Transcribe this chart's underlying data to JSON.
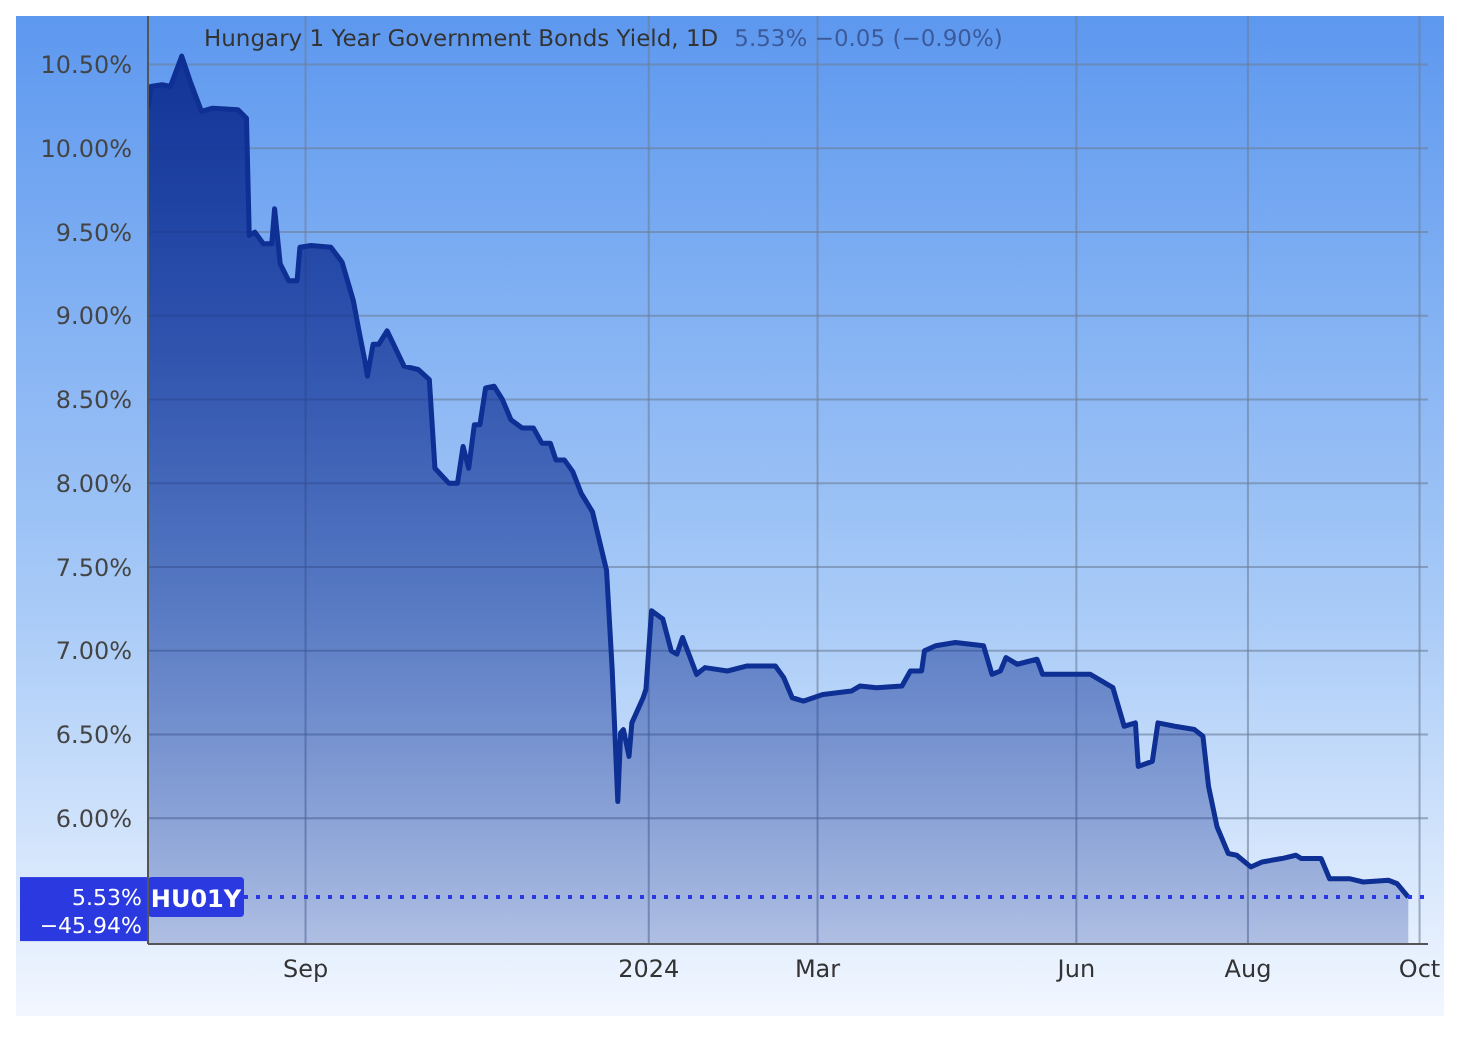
{
  "chart_data": {
    "type": "area",
    "title": "Hungary 1 Year Government Bonds Yield, 1D",
    "subtitle": "5.53%  −0.05 (−0.90%)",
    "x": [
      "2023-07-07",
      "2023-07-08",
      "2023-07-12",
      "2023-07-15",
      "2023-07-19",
      "2023-07-22",
      "2023-07-26",
      "2023-07-30",
      "2023-08-08",
      "2023-08-11",
      "2023-08-12",
      "2023-08-14",
      "2023-08-17",
      "2023-08-20",
      "2023-08-21",
      "2023-08-23",
      "2023-08-26",
      "2023-08-29",
      "2023-08-30",
      "2023-09-03",
      "2023-09-10",
      "2023-09-14",
      "2023-09-18",
      "2023-09-20",
      "2023-09-22",
      "2023-09-23",
      "2023-09-25",
      "2023-09-27",
      "2023-09-30",
      "2023-10-04",
      "2023-10-06",
      "2023-10-11",
      "2023-10-15",
      "2023-10-17",
      "2023-10-22",
      "2023-10-25",
      "2023-10-27",
      "2023-10-29",
      "2023-10-31",
      "2023-11-02",
      "2023-11-04",
      "2023-11-07",
      "2023-11-10",
      "2023-11-13",
      "2023-11-17",
      "2023-11-21",
      "2023-11-24",
      "2023-11-27",
      "2023-11-29",
      "2023-12-02",
      "2023-12-05",
      "2023-12-08",
      "2023-12-12",
      "2023-12-17",
      "2023-12-19",
      "2023-12-21",
      "2023-12-22",
      "2023-12-23",
      "2023-12-25",
      "2023-12-26",
      "2023-12-30",
      "2023-12-31",
      "2024-01-02",
      "2024-01-06",
      "2024-01-09",
      "2024-01-11",
      "2024-01-13",
      "2024-01-18",
      "2024-01-21",
      "2024-01-29",
      "2024-02-05",
      "2024-02-15",
      "2024-02-18",
      "2024-02-21",
      "2024-02-25",
      "2024-03-03",
      "2024-03-13",
      "2024-03-16",
      "2024-03-22",
      "2024-03-31",
      "2024-04-03",
      "2024-04-07",
      "2024-04-08",
      "2024-04-12",
      "2024-04-19",
      "2024-04-29",
      "2024-05-02",
      "2024-05-05",
      "2024-05-07",
      "2024-05-11",
      "2024-05-18",
      "2024-05-20",
      "2024-06-06",
      "2024-06-14",
      "2024-06-18",
      "2024-06-22",
      "2024-06-23",
      "2024-06-28",
      "2024-06-30",
      "2024-07-06",
      "2024-07-13",
      "2024-07-16",
      "2024-07-18",
      "2024-07-21",
      "2024-07-25",
      "2024-07-28",
      "2024-08-02",
      "2024-08-06",
      "2024-08-13",
      "2024-08-18",
      "2024-08-20",
      "2024-08-27",
      "2024-08-30",
      "2024-09-06",
      "2024-09-11",
      "2024-09-20",
      "2024-09-23",
      "2024-09-27"
    ],
    "series": [
      {
        "color": "#0e2f93",
        "values": [
          10.24,
          10.37,
          10.38,
          10.37,
          10.55,
          10.4,
          10.22,
          10.24,
          10.23,
          10.18,
          9.48,
          9.5,
          9.43,
          9.43,
          9.64,
          9.31,
          9.21,
          9.21,
          9.41,
          9.42,
          9.41,
          9.32,
          9.09,
          8.91,
          8.74,
          8.64,
          8.83,
          8.83,
          8.91,
          8.77,
          8.7,
          8.68,
          8.62,
          8.09,
          8.0,
          8.0,
          8.22,
          8.09,
          8.35,
          8.35,
          8.57,
          8.58,
          8.5,
          8.38,
          8.33,
          8.33,
          8.24,
          8.24,
          8.14,
          8.14,
          8.07,
          7.94,
          7.83,
          7.48,
          6.89,
          6.1,
          6.51,
          6.53,
          6.37,
          6.57,
          6.72,
          6.77,
          7.24,
          7.19,
          7.0,
          6.98,
          7.08,
          6.86,
          6.9,
          6.88,
          6.91,
          6.91,
          6.84,
          6.72,
          6.7,
          6.74,
          6.76,
          6.79,
          6.78,
          6.79,
          6.88,
          6.88,
          7.0,
          7.03,
          7.05,
          7.03,
          6.86,
          6.88,
          6.96,
          6.92,
          6.95,
          6.86,
          6.86,
          6.78,
          6.55,
          6.57,
          6.31,
          6.34,
          6.57,
          6.55,
          6.53,
          6.49,
          6.19,
          5.95,
          5.79,
          5.78,
          5.71,
          5.74,
          5.76,
          5.78,
          5.76,
          5.76,
          5.64,
          5.64,
          5.62,
          5.63,
          5.61,
          5.53
        ]
      }
    ],
    "xlim": [
      "2023-07-07",
      "2024-10-04"
    ],
    "xticks": [
      {
        "value": "2023-09-01",
        "label": "Sep"
      },
      {
        "value": "2024-01-01",
        "label": "2024"
      },
      {
        "value": "2024-03-01",
        "label": "Mar"
      },
      {
        "value": "2024-06-01",
        "label": "Jun"
      },
      {
        "value": "2024-08-01",
        "label": "Aug"
      },
      {
        "value": "2024-10-01",
        "label": "Oct"
      }
    ],
    "ylim": [
      5.25,
      10.79
    ],
    "yticks": [
      {
        "value": 6,
        "label": "6.00%"
      },
      {
        "value": 6.5,
        "label": "6.50%"
      },
      {
        "value": 7,
        "label": "7.00%"
      },
      {
        "value": 7.5,
        "label": "7.50%"
      },
      {
        "value": 8,
        "label": "8.00%"
      },
      {
        "value": 8.5,
        "label": "8.50%"
      },
      {
        "value": 9,
        "label": "9.00%"
      },
      {
        "value": 9.5,
        "label": "9.50%"
      },
      {
        "value": 10,
        "label": "10.00%"
      },
      {
        "value": 10.5,
        "label": "10.50%"
      }
    ],
    "grid": true,
    "ref_lines": [
      {
        "axis": "y",
        "value": 5.53,
        "label": "HU01Y",
        "line_style": "dotted",
        "color": "#2a3ae0"
      }
    ],
    "annotations": [
      "5.53%",
      "−45.94%"
    ]
  }
}
